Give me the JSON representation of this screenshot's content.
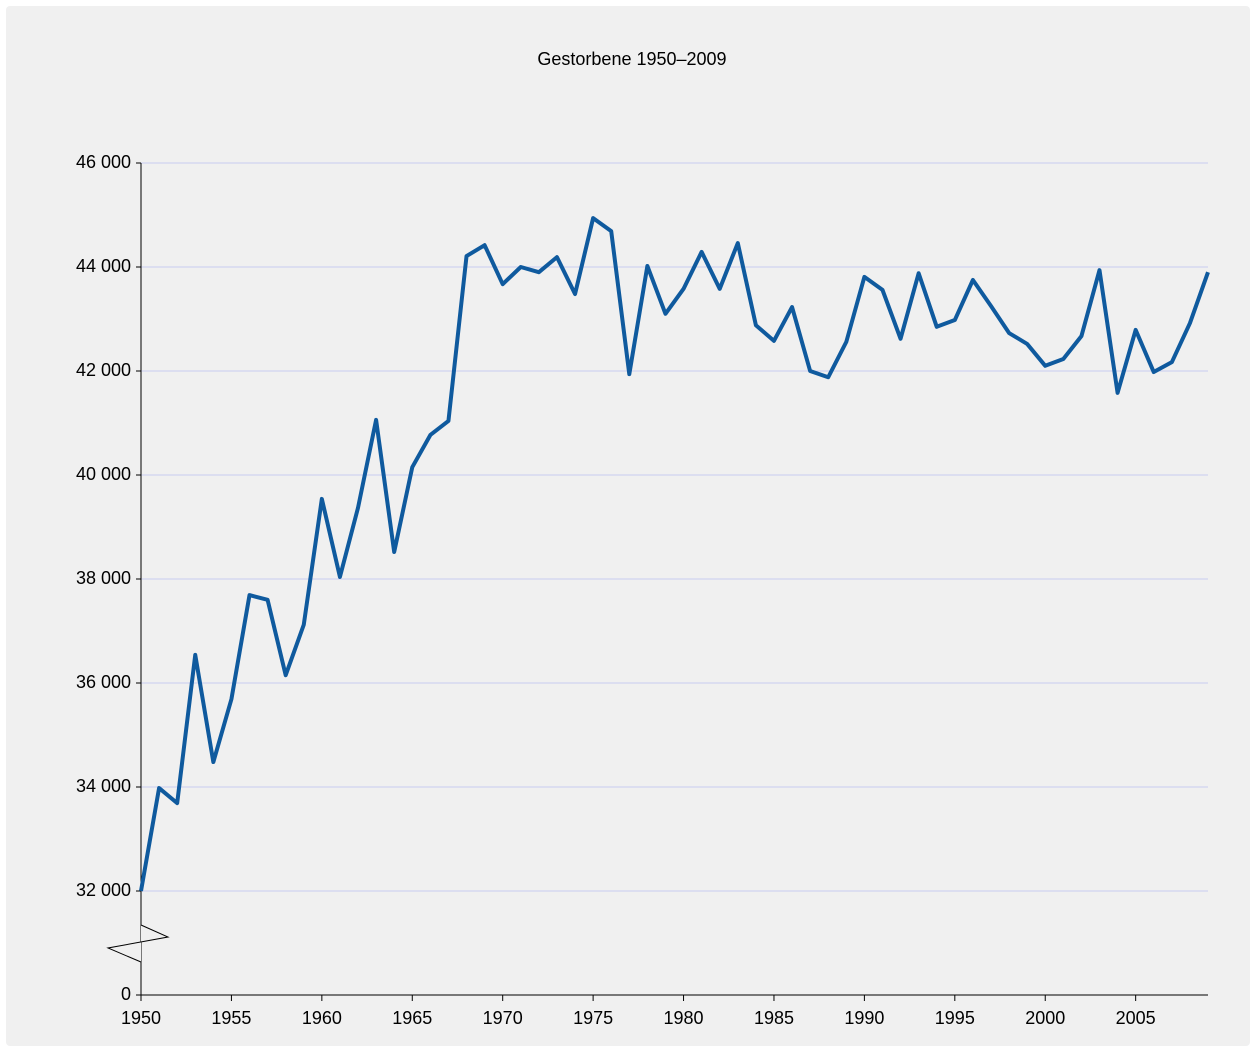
{
  "chart_data": {
    "type": "line",
    "title": "Gestorbene 1950–2009",
    "x": [
      1950,
      1951,
      1952,
      1953,
      1954,
      1955,
      1956,
      1957,
      1958,
      1959,
      1960,
      1961,
      1962,
      1963,
      1964,
      1965,
      1966,
      1967,
      1968,
      1969,
      1970,
      1971,
      1972,
      1973,
      1974,
      1975,
      1976,
      1977,
      1978,
      1979,
      1980,
      1981,
      1982,
      1983,
      1984,
      1985,
      1986,
      1987,
      1988,
      1989,
      1990,
      1991,
      1992,
      1993,
      1994,
      1995,
      1996,
      1997,
      1998,
      1999,
      2000,
      2001,
      2002,
      2003,
      2004,
      2005,
      2006,
      2007,
      2008,
      2009
    ],
    "series": [
      {
        "color": "#0f5a9e",
        "values": [
          32000,
          33980,
          33690,
          36540,
          34480,
          35690,
          37690,
          37600,
          36150,
          37120,
          39540,
          38040,
          39370,
          41060,
          38520,
          40150,
          40770,
          41040,
          44210,
          44420,
          43670,
          44000,
          43900,
          44190,
          43480,
          44940,
          44690,
          41940,
          44020,
          43100,
          43580,
          44290,
          43580,
          44460,
          42880,
          42580,
          43230,
          42000,
          41880,
          42560,
          43810,
          43560,
          42620,
          43880,
          42850,
          42980,
          43750,
          43250,
          42730,
          42520,
          42100,
          42230,
          42670,
          43940,
          41580,
          42790,
          41980,
          42170,
          42920,
          43900
        ]
      }
    ],
    "xlim": [
      1950,
      2009
    ],
    "xticks": [
      1950,
      1955,
      1960,
      1965,
      1970,
      1975,
      1980,
      1985,
      1990,
      1995,
      2000,
      2005
    ],
    "ylim": [
      0,
      46000
    ],
    "axis_break": true,
    "yticks": [
      0,
      {
        "value": 32000,
        "label": "32 000"
      },
      {
        "value": 34000,
        "label": "34 000"
      },
      {
        "value": 36000,
        "label": "36 000"
      },
      {
        "value": 38000,
        "label": "38 000"
      },
      {
        "value": 40000,
        "label": "40 000"
      },
      {
        "value": 42000,
        "label": "42 000"
      },
      {
        "value": 44000,
        "label": "44 000"
      },
      {
        "value": 46000,
        "label": "46 000"
      }
    ],
    "grid": true
  }
}
